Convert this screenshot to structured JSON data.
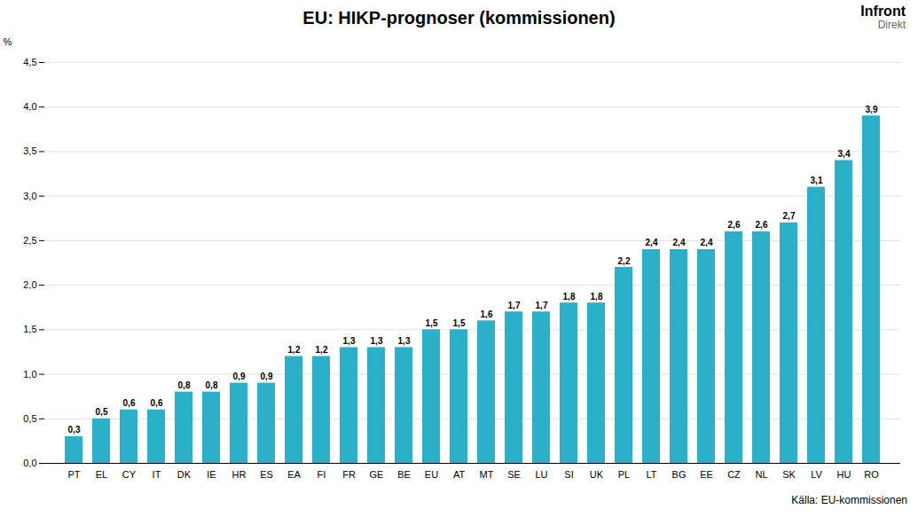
{
  "chart_data": {
    "type": "bar",
    "title": "EU: HIKP-prognoser (kommissionen)",
    "y_label": "%",
    "annotations": [
      "Källa:  EU-kommissionen",
      "Infront",
      "Direkt"
    ],
    "categories": [
      "PT",
      "EL",
      "CY",
      "IT",
      "DK",
      "IE",
      "HR",
      "ES",
      "EA",
      "FI",
      "FR",
      "GE",
      "BE",
      "EU",
      "AT",
      "MT",
      "SE",
      "LU",
      "SI",
      "UK",
      "PL",
      "LT",
      "BG",
      "EE",
      "CZ",
      "NL",
      "SK",
      "LV",
      "HU",
      "RO"
    ],
    "values": [
      0.3,
      0.5,
      0.6,
      0.6,
      0.8,
      0.8,
      0.9,
      0.9,
      1.2,
      1.2,
      1.3,
      1.3,
      1.3,
      1.5,
      1.5,
      1.6,
      1.7,
      1.7,
      1.8,
      1.8,
      2.2,
      2.4,
      2.4,
      2.4,
      2.6,
      2.6,
      2.7,
      3.1,
      3.4,
      3.9
    ],
    "value_labels": [
      "0,3",
      "0,5",
      "0,6",
      "0,6",
      "0,8",
      "0,8",
      "0,9",
      "0,9",
      "1,2",
      "1,2",
      "1,3",
      "1,3",
      "1,3",
      "1,5",
      "1,5",
      "1,6",
      "1,7",
      "1,7",
      "1,8",
      "1,8",
      "2,2",
      "2,4",
      "2,4",
      "2,4",
      "2,6",
      "2,6",
      "2,7",
      "3,1",
      "3,4",
      "3,9"
    ],
    "data_labels": true,
    "color": "#2ab0c8",
    "ylim": [
      0,
      4.5
    ],
    "yticks": [
      {
        "value": 0.0,
        "label": "0,0"
      },
      {
        "value": 0.5,
        "label": "0,5"
      },
      {
        "value": 1.0,
        "label": "1,0"
      },
      {
        "value": 1.5,
        "label": "1,5"
      },
      {
        "value": 2.0,
        "label": "2,0"
      },
      {
        "value": 2.5,
        "label": "2,5"
      },
      {
        "value": 3.0,
        "label": "3,0"
      },
      {
        "value": 3.5,
        "label": "3,5"
      },
      {
        "value": 4.0,
        "label": "4,0"
      },
      {
        "value": 4.5,
        "label": "4,5"
      }
    ],
    "grid": true
  }
}
